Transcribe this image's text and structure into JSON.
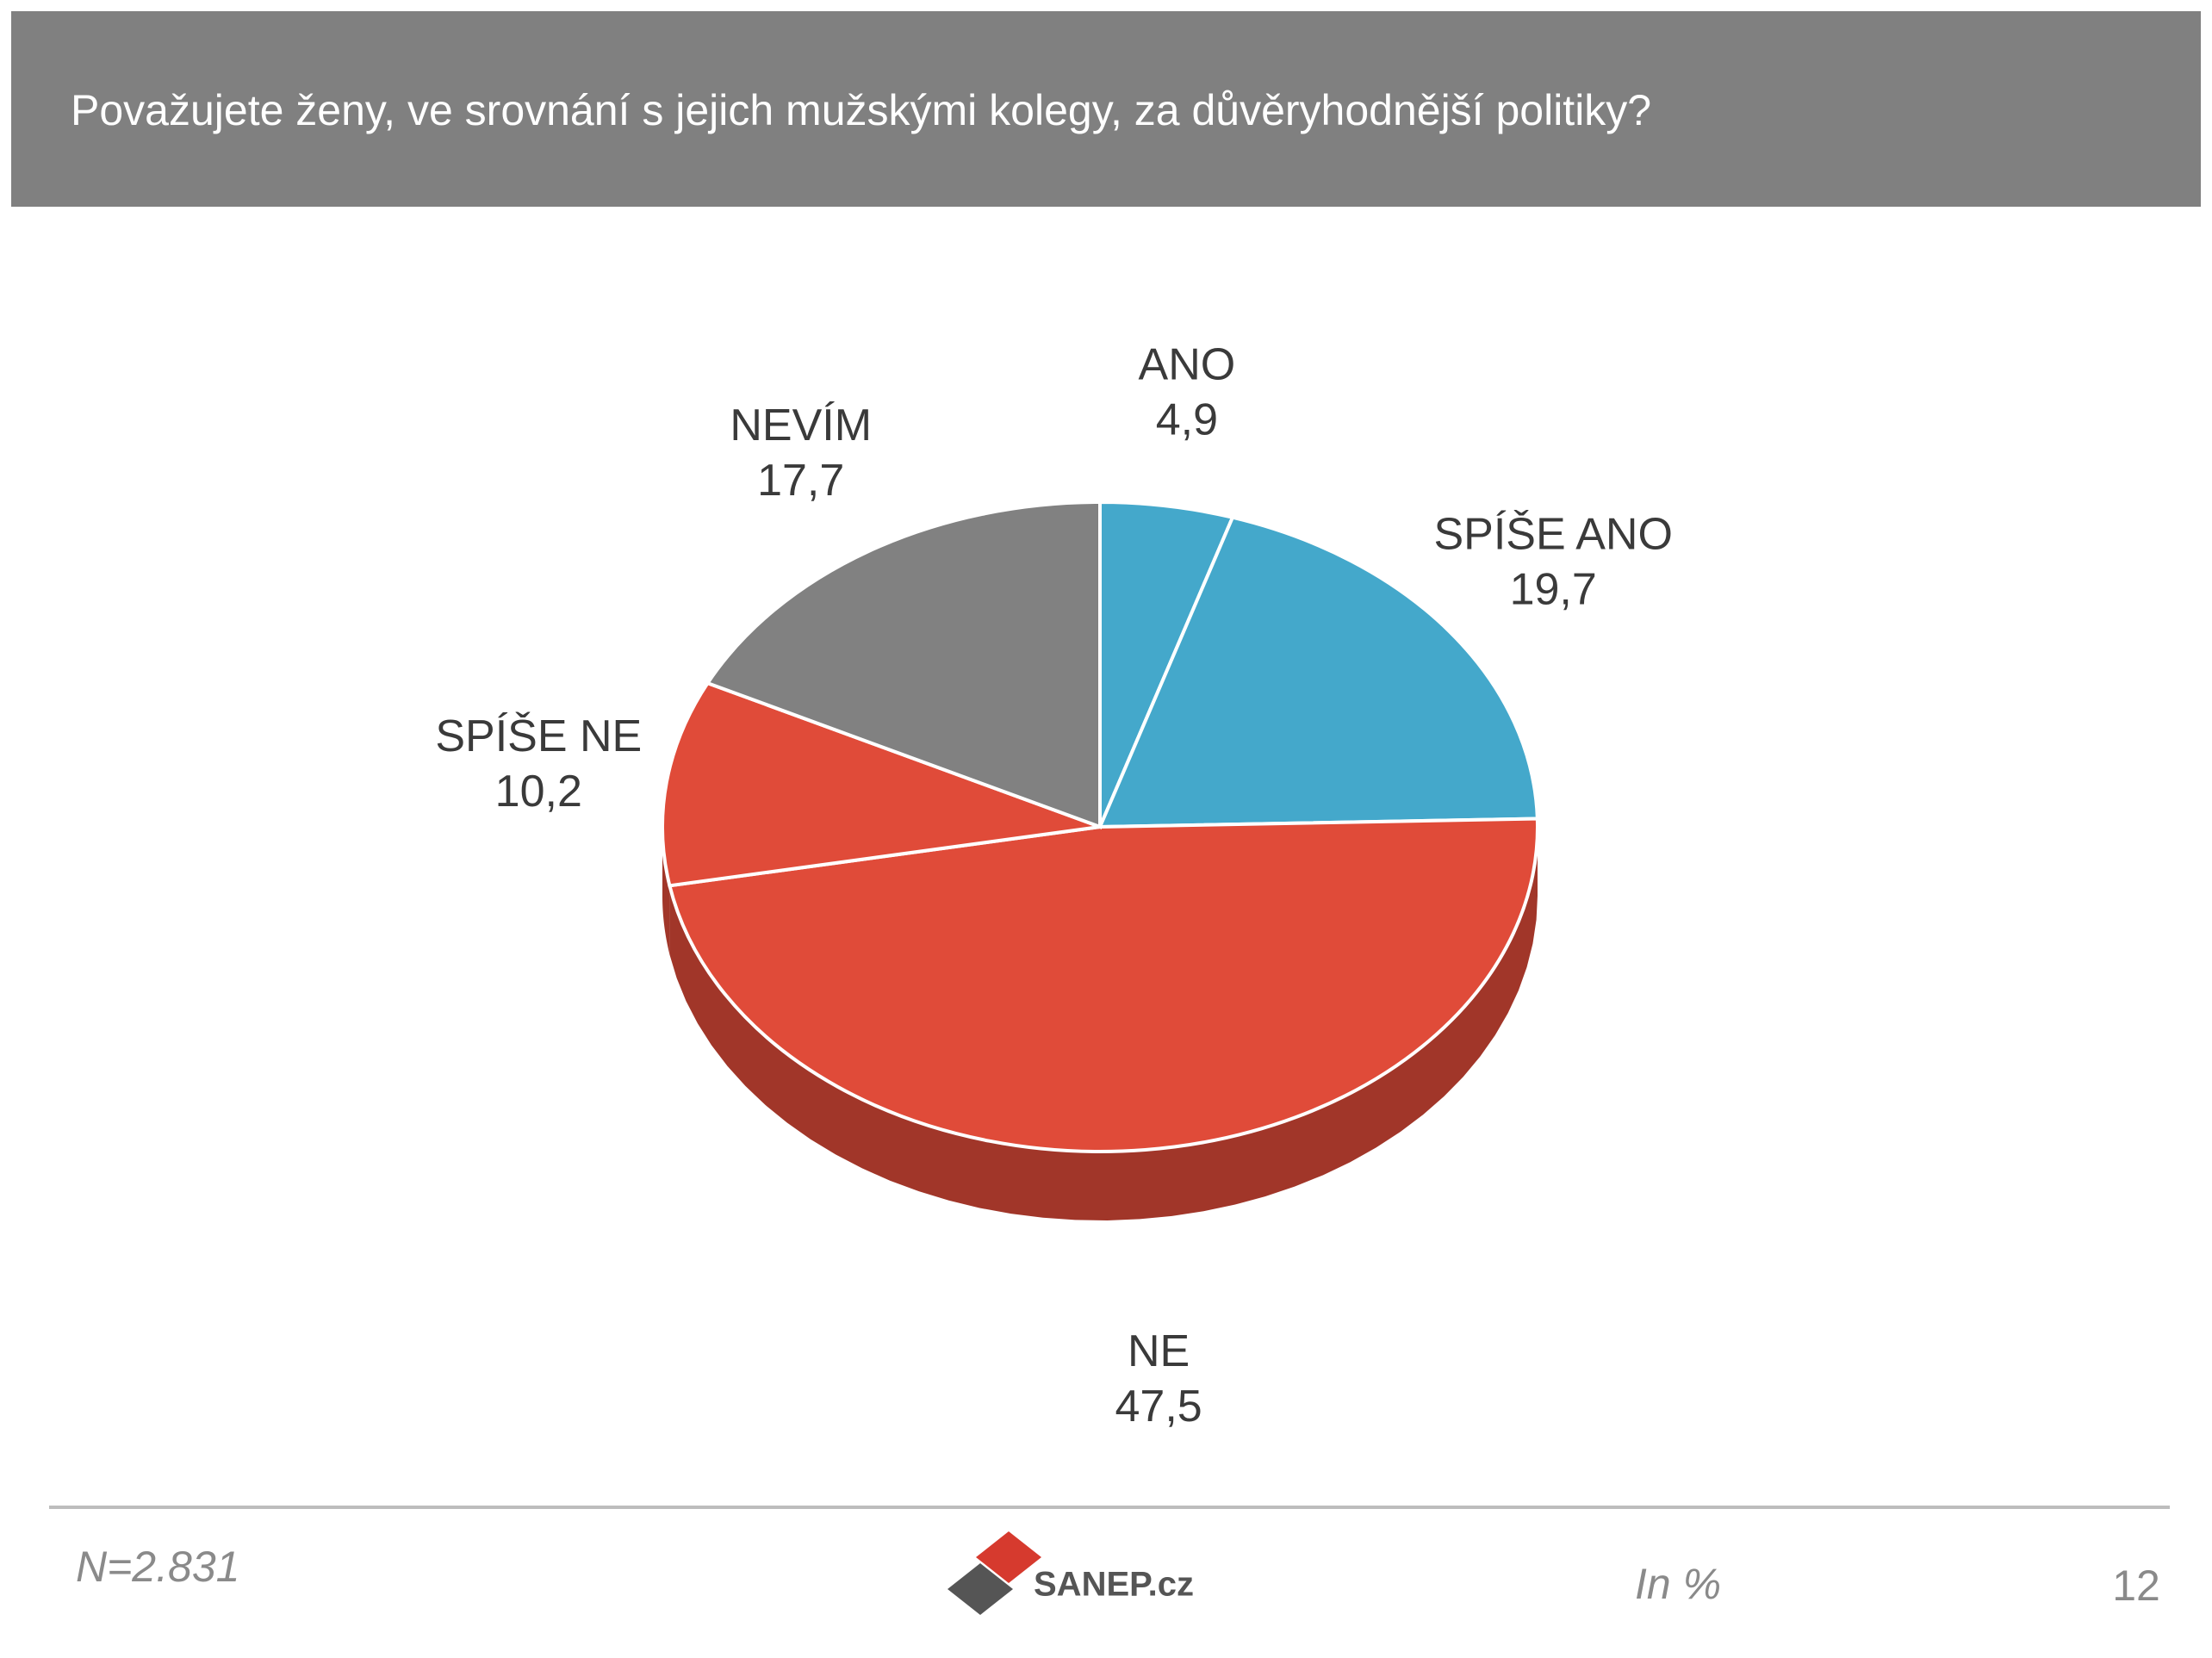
{
  "chart_data": {
    "type": "pie",
    "title": "Považujete ženy, ve srovnání s jejich mužskými kolegy, za důvěryhodnější politiky?",
    "categories": [
      "ANO",
      "SPÍŠE ANO",
      "NE",
      "SPÍŠE NE",
      "NEVÍM"
    ],
    "values": [
      4.9,
      19.7,
      47.5,
      10.2,
      17.7
    ],
    "value_labels": [
      "4,9",
      "19,7",
      "47,5",
      "10,2",
      "17,7"
    ],
    "colors": [
      "#44a8cb",
      "#44a8cb",
      "#e04b39",
      "#e04b39",
      "#818181"
    ],
    "sample_note": "N=2.831",
    "source": "SANEP.cz",
    "unit_note": "In %",
    "page_number": "12"
  }
}
